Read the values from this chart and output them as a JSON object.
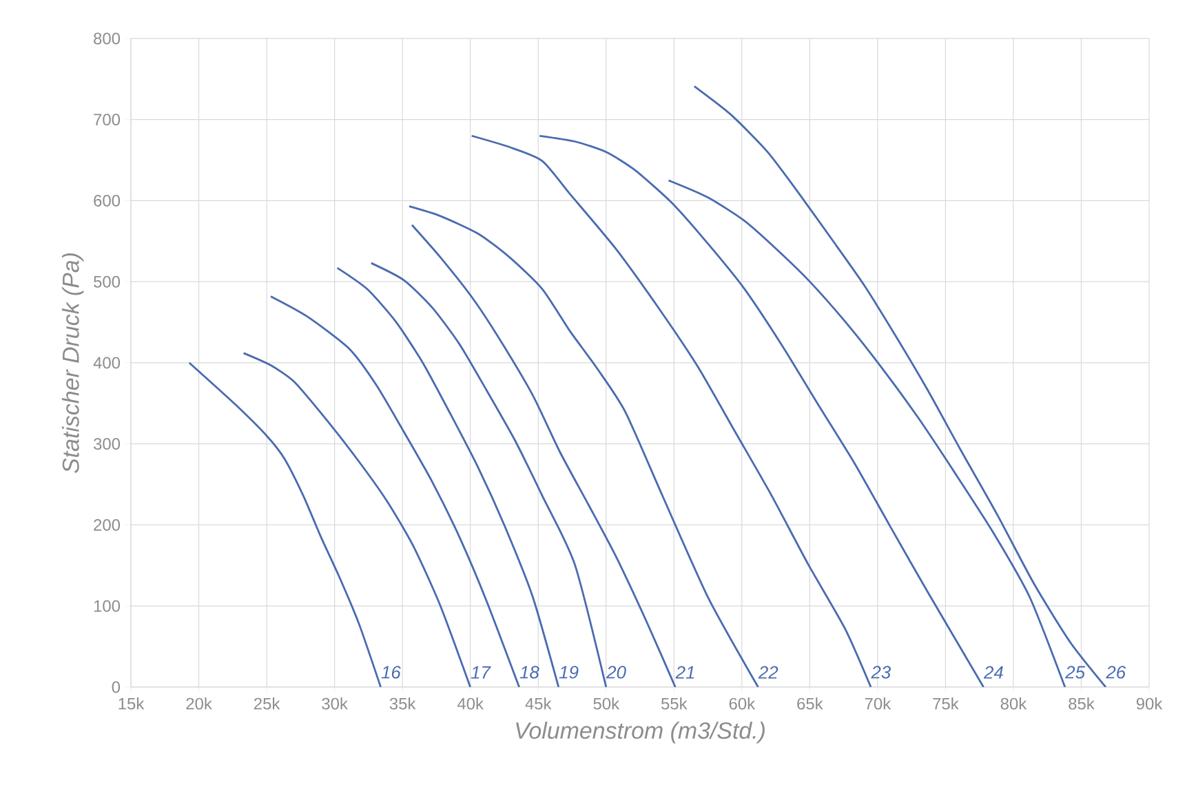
{
  "chart_data": {
    "type": "line",
    "xlabel": "Volumenstrom (m3/Std.)",
    "ylabel": "Statischer Druck (Pa)",
    "xlim": [
      15000,
      90000
    ],
    "ylim": [
      0,
      800
    ],
    "xticks": [
      {
        "value": 15000,
        "label": "15k"
      },
      {
        "value": 20000,
        "label": "20k"
      },
      {
        "value": 25000,
        "label": "25k"
      },
      {
        "value": 30000,
        "label": "30k"
      },
      {
        "value": 35000,
        "label": "35k"
      },
      {
        "value": 40000,
        "label": "40k"
      },
      {
        "value": 45000,
        "label": "45k"
      },
      {
        "value": 50000,
        "label": "50k"
      },
      {
        "value": 55000,
        "label": "55k"
      },
      {
        "value": 60000,
        "label": "60k"
      },
      {
        "value": 65000,
        "label": "65k"
      },
      {
        "value": 70000,
        "label": "70k"
      },
      {
        "value": 75000,
        "label": "75k"
      },
      {
        "value": 80000,
        "label": "80k"
      },
      {
        "value": 85000,
        "label": "85k"
      },
      {
        "value": 90000,
        "label": "90k"
      }
    ],
    "yticks": [
      0,
      100,
      200,
      300,
      400,
      500,
      600,
      700,
      800
    ],
    "grid": true,
    "series": [
      {
        "name": "16",
        "color": "#4a6bb0",
        "x": [
          19300,
          22600,
          25000,
          26300,
          27700,
          29000,
          30400,
          31800,
          33400
        ],
        "values": [
          400,
          350,
          310,
          282,
          236,
          185,
          134,
          78,
          0
        ]
      },
      {
        "name": "17",
        "color": "#4a6bb0",
        "x": [
          23300,
          25300,
          27000,
          29000,
          31400,
          33800,
          35800,
          37800,
          40000
        ],
        "values": [
          412,
          397,
          377,
          338,
          287,
          231,
          174,
          100,
          0
        ]
      },
      {
        "name": "18",
        "color": "#4a6bb0",
        "x": [
          25300,
          28000,
          31100,
          33100,
          35100,
          37200,
          39200,
          41200,
          43600
        ],
        "values": [
          482,
          457,
          417,
          372,
          315,
          253,
          185,
          106,
          0
        ]
      },
      {
        "name": "19",
        "color": "#4a6bb0",
        "x": [
          30200,
          32400,
          34500,
          36500,
          38500,
          40600,
          42600,
          44600,
          46500
        ],
        "values": [
          517,
          491,
          451,
          400,
          338,
          270,
          196,
          111,
          0
        ]
      },
      {
        "name": "20",
        "color": "#4a6bb0",
        "x": [
          32700,
          35100,
          37200,
          39200,
          41200,
          43300,
          45300,
          47700,
          50000
        ],
        "values": [
          523,
          502,
          468,
          423,
          366,
          304,
          236,
          151,
          0
        ]
      },
      {
        "name": "21",
        "color": "#4a6bb0",
        "x": [
          35700,
          37800,
          40200,
          42200,
          44600,
          46600,
          48700,
          50700,
          53000,
          55100
        ],
        "values": [
          570,
          530,
          479,
          428,
          360,
          290,
          225,
          162,
          80,
          0
        ]
      },
      {
        "name": "22",
        "color": "#4a6bb0",
        "x": [
          35500,
          37800,
          40600,
          42900,
          45300,
          47300,
          49300,
          51400,
          54100,
          57500,
          61200
        ],
        "values": [
          593,
          581,
          559,
          530,
          491,
          440,
          394,
          340,
          238,
          111,
          0
        ]
      },
      {
        "name": "23",
        "color": "#4a6bb0",
        "x": [
          40100,
          42900,
          45300,
          47300,
          50700,
          54100,
          56800,
          59500,
          62200,
          64900,
          67600,
          69500
        ],
        "values": [
          680,
          666,
          649,
          609,
          541,
          462,
          394,
          315,
          236,
          151,
          72,
          0
        ]
      },
      {
        "name": "24",
        "color": "#4a6bb0",
        "x": [
          45100,
          47700,
          50000,
          52100,
          54800,
          57500,
          60200,
          62900,
          65600,
          68300,
          71000,
          73700,
          77800
        ],
        "values": [
          680,
          673,
          660,
          638,
          598,
          547,
          491,
          423,
          349,
          276,
          196,
          117,
          0
        ]
      },
      {
        "name": "25",
        "color": "#4a6bb0",
        "x": [
          54600,
          57500,
          60200,
          62500,
          64900,
          67600,
          70300,
          73000,
          75700,
          78500,
          81200,
          83800
        ],
        "values": [
          625,
          604,
          575,
          541,
          502,
          451,
          394,
          332,
          264,
          191,
          111,
          0
        ]
      },
      {
        "name": "26",
        "color": "#4a6bb0",
        "x": [
          56500,
          59200,
          61900,
          64200,
          66600,
          69000,
          71300,
          73700,
          76100,
          78800,
          81500,
          84200,
          86800
        ],
        "values": [
          741,
          706,
          660,
          609,
          553,
          496,
          434,
          366,
          293,
          213,
          128,
          55,
          0
        ]
      }
    ]
  }
}
